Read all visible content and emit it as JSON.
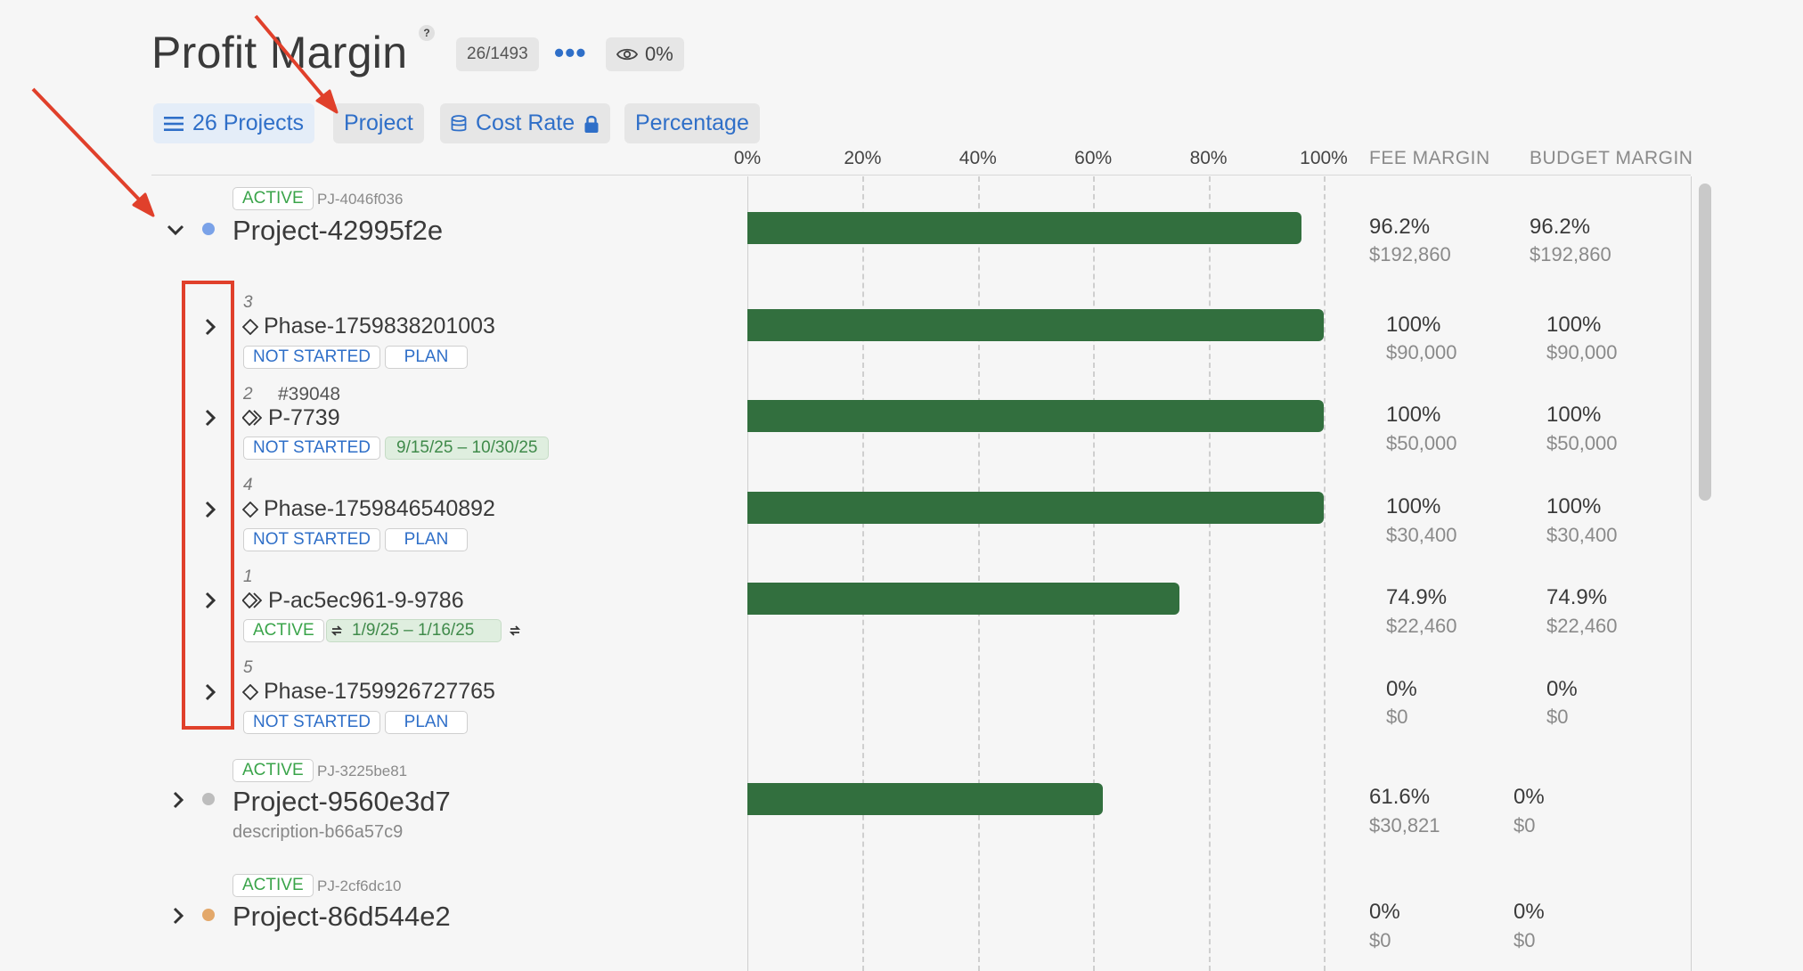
{
  "header": {
    "title": "Profit Margin",
    "help": "?",
    "count": "26/1493",
    "more": "•••",
    "visibility": "0%"
  },
  "toolbar": {
    "projects_label": "26 Projects",
    "project_label": "Project",
    "cost_rate_label": "Cost Rate",
    "percentage_label": "Percentage"
  },
  "columns": {
    "fee_margin": "FEE MARGIN",
    "budget_margin": "BUDGET MARGIN"
  },
  "chart_data": {
    "type": "bar",
    "orientation": "horizontal",
    "x_ticks": [
      "0%",
      "20%",
      "40%",
      "60%",
      "80%",
      "100%"
    ],
    "xlim": [
      0,
      100
    ],
    "categories": [
      "Project-42995f2e",
      "Phase-1759838201003",
      "P-7739",
      "Phase-1759846540892",
      "P-ac5ec961-9-9786",
      "Phase-1759926727765",
      "Project-9560e3d7",
      "Project-86d544e2"
    ],
    "values": [
      96.2,
      100,
      100,
      100,
      74.9,
      0,
      61.6,
      0
    ]
  },
  "projects": [
    {
      "status": "ACTIVE",
      "id": "PJ-4046f036",
      "name": "Project-42995f2e",
      "dot_color": "#7aa2e8",
      "fee_pct": "96.2%",
      "fee_amt": "$192,860",
      "budget_pct": "96.2%",
      "budget_amt": "$192,860",
      "phases": [
        {
          "num": "3",
          "name": "Phase-1759838201003",
          "status": "NOT STARTED",
          "tag": "PLAN",
          "fee_pct": "100%",
          "fee_amt": "$90,000",
          "budget_pct": "100%",
          "budget_amt": "$90,000"
        },
        {
          "num": "2",
          "ref": "#39048",
          "name": "P-7739",
          "status": "NOT STARTED",
          "dates": "9/15/25  – 10/30/25",
          "fee_pct": "100%",
          "fee_amt": "$50,000",
          "budget_pct": "100%",
          "budget_amt": "$50,000"
        },
        {
          "num": "4",
          "name": "Phase-1759846540892",
          "status": "NOT STARTED",
          "tag": "PLAN",
          "fee_pct": "100%",
          "fee_amt": "$30,400",
          "budget_pct": "100%",
          "budget_amt": "$30,400"
        },
        {
          "num": "1",
          "name": "P-ac5ec961-9-9786",
          "status": "ACTIVE",
          "dates": "1/9/25   –  1/16/25",
          "fee_pct": "74.9%",
          "fee_amt": "$22,460",
          "budget_pct": "74.9%",
          "budget_amt": "$22,460"
        },
        {
          "num": "5",
          "name": "Phase-1759926727765",
          "status": "NOT STARTED",
          "tag": "PLAN",
          "fee_pct": "0%",
          "fee_amt": "$0",
          "budget_pct": "0%",
          "budget_amt": "$0"
        }
      ]
    },
    {
      "status": "ACTIVE",
      "id": "PJ-3225be81",
      "name": "Project-9560e3d7",
      "description": "description-b66a57c9",
      "dot_color": "#bdbdbd",
      "fee_pct": "61.6%",
      "fee_amt": "$30,821",
      "budget_pct": "0%",
      "budget_amt": "$0"
    },
    {
      "status": "ACTIVE",
      "id": "PJ-2cf6dc10",
      "name": "Project-86d544e2",
      "dot_color": "#e3a86a",
      "fee_pct": "0%",
      "fee_amt": "$0",
      "budget_pct": "0%",
      "budget_amt": "$0"
    }
  ],
  "colors": {
    "bar": "#326f3e",
    "accent": "#2f6fc8",
    "annotation": "#e0402b"
  }
}
